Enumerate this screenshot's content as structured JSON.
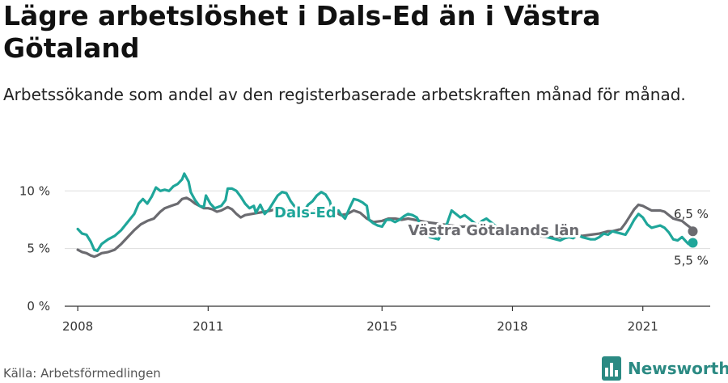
{
  "title": "Lägre arbetslöshet i Dals-Ed än i Västra Götaland",
  "subtitle": "Arbetssökande som andel av den registerbaserade arbetskraften månad för månad.",
  "source": "Källa: Arbetsförmedlingen",
  "brand": {
    "name": "Newsworthy",
    "logo_icon": "bar-chart-logo-icon"
  },
  "colors": {
    "dals_ed": "#1fa69a",
    "vastra_gotaland": "#6b6b70",
    "grid": "#dddddd",
    "axis": "#333333",
    "brand": "#2b8a83"
  },
  "chart_data": {
    "type": "line",
    "xlabel": "",
    "ylabel": "",
    "x_range": [
      2008.0,
      2022.0
    ],
    "ylim": [
      0,
      11
    ],
    "y_ticks": [
      0,
      5,
      10
    ],
    "y_tick_labels": [
      "0 %",
      "5 %",
      "10 %"
    ],
    "x_ticks": [
      2008,
      2011,
      2015,
      2018,
      2021
    ],
    "x_tick_labels": [
      "2008",
      "2011",
      "2015",
      "2018",
      "2021"
    ],
    "grid": true,
    "series": [
      {
        "name": "Dals-Ed",
        "label": "Dals-Ed",
        "color": "#1fa69a",
        "points": [
          [
            2008.0,
            6.7
          ],
          [
            2008.1,
            6.3
          ],
          [
            2008.2,
            6.2
          ],
          [
            2008.3,
            5.6
          ],
          [
            2008.38,
            4.9
          ],
          [
            2008.45,
            4.8
          ],
          [
            2008.55,
            5.4
          ],
          [
            2008.7,
            5.8
          ],
          [
            2008.85,
            6.1
          ],
          [
            2009.0,
            6.6
          ],
          [
            2009.15,
            7.3
          ],
          [
            2009.3,
            8.0
          ],
          [
            2009.4,
            8.9
          ],
          [
            2009.5,
            9.3
          ],
          [
            2009.6,
            8.9
          ],
          [
            2009.7,
            9.5
          ],
          [
            2009.8,
            10.3
          ],
          [
            2009.9,
            10.0
          ],
          [
            2010.0,
            10.1
          ],
          [
            2010.1,
            10.0
          ],
          [
            2010.2,
            10.4
          ],
          [
            2010.3,
            10.6
          ],
          [
            2010.4,
            11.0
          ],
          [
            2010.45,
            11.5
          ],
          [
            2010.55,
            10.8
          ],
          [
            2010.6,
            9.9
          ],
          [
            2010.7,
            9.2
          ],
          [
            2010.8,
            8.7
          ],
          [
            2010.9,
            8.6
          ],
          [
            2010.95,
            9.6
          ],
          [
            2011.05,
            8.9
          ],
          [
            2011.15,
            8.5
          ],
          [
            2011.3,
            8.7
          ],
          [
            2011.4,
            9.2
          ],
          [
            2011.45,
            10.2
          ],
          [
            2011.55,
            10.2
          ],
          [
            2011.65,
            10.0
          ],
          [
            2011.75,
            9.5
          ],
          [
            2011.85,
            8.9
          ],
          [
            2011.95,
            8.5
          ],
          [
            2012.05,
            8.7
          ],
          [
            2012.1,
            8.1
          ],
          [
            2012.2,
            8.8
          ],
          [
            2012.3,
            8.0
          ],
          [
            2012.4,
            8.4
          ],
          [
            2012.5,
            9.0
          ],
          [
            2012.6,
            9.6
          ],
          [
            2012.7,
            9.9
          ],
          [
            2012.8,
            9.8
          ],
          [
            2012.9,
            9.1
          ],
          [
            2013.0,
            8.6
          ],
          [
            2013.1,
            8.3
          ],
          [
            2013.2,
            8.2
          ],
          [
            2013.3,
            8.8
          ],
          [
            2013.4,
            9.1
          ],
          [
            2013.5,
            9.6
          ],
          [
            2013.6,
            9.9
          ],
          [
            2013.7,
            9.7
          ],
          [
            2013.8,
            9.1
          ],
          [
            2013.85,
            8.3
          ],
          [
            2013.95,
            8.2
          ],
          [
            2014.0,
            8.3
          ],
          [
            2014.05,
            8.0
          ],
          [
            2014.15,
            7.6
          ],
          [
            2014.25,
            8.5
          ],
          [
            2014.35,
            9.3
          ],
          [
            2014.45,
            9.2
          ],
          [
            2014.55,
            9.0
          ],
          [
            2014.65,
            8.7
          ],
          [
            2014.7,
            7.5
          ],
          [
            2014.8,
            7.2
          ],
          [
            2014.9,
            7.0
          ],
          [
            2015.0,
            6.9
          ],
          [
            2015.1,
            7.5
          ],
          [
            2015.2,
            7.5
          ],
          [
            2015.3,
            7.3
          ],
          [
            2015.4,
            7.5
          ],
          [
            2015.5,
            7.8
          ],
          [
            2015.6,
            8.0
          ],
          [
            2015.7,
            7.9
          ],
          [
            2015.8,
            7.7
          ],
          [
            2015.9,
            7.0
          ],
          [
            2016.0,
            6.5
          ],
          [
            2016.1,
            6.0
          ],
          [
            2016.2,
            5.9
          ],
          [
            2016.3,
            5.8
          ],
          [
            2016.4,
            6.6
          ],
          [
            2016.5,
            7.2
          ],
          [
            2016.6,
            8.3
          ],
          [
            2016.7,
            8.0
          ],
          [
            2016.8,
            7.7
          ],
          [
            2016.9,
            7.9
          ],
          [
            2017.0,
            7.6
          ],
          [
            2017.1,
            7.3
          ],
          [
            2017.2,
            7.0
          ],
          [
            2017.3,
            7.4
          ],
          [
            2017.4,
            7.6
          ],
          [
            2017.5,
            7.3
          ],
          [
            2017.6,
            7.0
          ],
          [
            2017.7,
            6.8
          ],
          [
            2017.8,
            6.7
          ],
          [
            2017.9,
            6.6
          ],
          [
            2018.0,
            6.5
          ],
          [
            2018.1,
            6.4
          ],
          [
            2018.2,
            6.3
          ],
          [
            2018.3,
            6.3
          ],
          [
            2018.4,
            6.3
          ],
          [
            2018.5,
            6.2
          ],
          [
            2018.6,
            6.2
          ],
          [
            2018.7,
            6.1
          ],
          [
            2018.8,
            6.0
          ],
          [
            2018.9,
            5.9
          ],
          [
            2019.0,
            5.8
          ],
          [
            2019.1,
            5.7
          ],
          [
            2019.2,
            5.9
          ],
          [
            2019.3,
            6.0
          ],
          [
            2019.4,
            5.9
          ],
          [
            2019.5,
            6.2
          ],
          [
            2019.6,
            6.0
          ],
          [
            2019.7,
            5.9
          ],
          [
            2019.8,
            5.8
          ],
          [
            2019.9,
            5.8
          ],
          [
            2020.0,
            6.0
          ],
          [
            2020.1,
            6.3
          ],
          [
            2020.2,
            6.2
          ],
          [
            2020.3,
            6.5
          ],
          [
            2020.4,
            6.4
          ],
          [
            2020.5,
            6.3
          ],
          [
            2020.6,
            6.2
          ],
          [
            2020.7,
            6.8
          ],
          [
            2020.8,
            7.5
          ],
          [
            2020.9,
            8.0
          ],
          [
            2021.0,
            7.7
          ],
          [
            2021.1,
            7.1
          ],
          [
            2021.2,
            6.8
          ],
          [
            2021.3,
            6.9
          ],
          [
            2021.4,
            7.0
          ],
          [
            2021.5,
            6.8
          ],
          [
            2021.6,
            6.4
          ],
          [
            2021.7,
            5.8
          ],
          [
            2021.8,
            5.7
          ],
          [
            2021.9,
            6.0
          ],
          [
            2022.0,
            5.6
          ],
          [
            2022.05,
            5.4
          ],
          [
            2022.15,
            5.5
          ]
        ],
        "end_label": "5,5 %"
      },
      {
        "name": "Västra Götalands län",
        "label": "Västra Götalands län",
        "color": "#6b6b70",
        "points": [
          [
            2008.0,
            4.9
          ],
          [
            2008.1,
            4.7
          ],
          [
            2008.2,
            4.6
          ],
          [
            2008.3,
            4.4
          ],
          [
            2008.38,
            4.3
          ],
          [
            2008.45,
            4.4
          ],
          [
            2008.55,
            4.6
          ],
          [
            2008.7,
            4.7
          ],
          [
            2008.85,
            4.9
          ],
          [
            2009.0,
            5.4
          ],
          [
            2009.15,
            6.0
          ],
          [
            2009.3,
            6.6
          ],
          [
            2009.45,
            7.1
          ],
          [
            2009.6,
            7.4
          ],
          [
            2009.75,
            7.6
          ],
          [
            2009.9,
            8.2
          ],
          [
            2010.0,
            8.5
          ],
          [
            2010.15,
            8.7
          ],
          [
            2010.3,
            8.9
          ],
          [
            2010.4,
            9.3
          ],
          [
            2010.5,
            9.4
          ],
          [
            2010.6,
            9.2
          ],
          [
            2010.7,
            8.9
          ],
          [
            2010.8,
            8.7
          ],
          [
            2010.9,
            8.5
          ],
          [
            2011.0,
            8.5
          ],
          [
            2011.1,
            8.4
          ],
          [
            2011.2,
            8.2
          ],
          [
            2011.3,
            8.3
          ],
          [
            2011.45,
            8.6
          ],
          [
            2011.55,
            8.4
          ],
          [
            2011.65,
            8.0
          ],
          [
            2011.75,
            7.7
          ],
          [
            2011.85,
            7.9
          ],
          [
            2012.0,
            8.0
          ],
          [
            2012.15,
            8.1
          ],
          [
            2012.3,
            8.2
          ],
          [
            2012.45,
            8.3
          ],
          [
            2012.6,
            8.5
          ],
          [
            2012.75,
            8.5
          ],
          [
            2012.9,
            8.4
          ],
          [
            2013.0,
            8.3
          ],
          [
            2013.15,
            8.2
          ],
          [
            2013.3,
            8.1
          ],
          [
            2013.45,
            8.3
          ],
          [
            2013.6,
            8.5
          ],
          [
            2013.75,
            8.4
          ],
          [
            2013.9,
            8.2
          ],
          [
            2014.05,
            7.9
          ],
          [
            2014.2,
            8.0
          ],
          [
            2014.35,
            8.3
          ],
          [
            2014.5,
            8.1
          ],
          [
            2014.65,
            7.6
          ],
          [
            2014.8,
            7.3
          ],
          [
            2015.0,
            7.4
          ],
          [
            2015.15,
            7.6
          ],
          [
            2015.3,
            7.6
          ],
          [
            2015.45,
            7.5
          ],
          [
            2015.6,
            7.6
          ],
          [
            2015.75,
            7.5
          ],
          [
            2016.0,
            7.3
          ],
          [
            2016.2,
            7.2
          ],
          [
            2016.4,
            7.1
          ],
          [
            2016.6,
            7.0
          ],
          [
            2016.8,
            6.9
          ],
          [
            2017.0,
            6.9
          ],
          [
            2017.2,
            6.8
          ],
          [
            2017.4,
            6.7
          ],
          [
            2017.6,
            6.6
          ],
          [
            2017.8,
            6.5
          ],
          [
            2018.0,
            6.4
          ],
          [
            2018.2,
            6.3
          ],
          [
            2018.4,
            6.2
          ],
          [
            2018.6,
            6.1
          ],
          [
            2018.8,
            6.0
          ],
          [
            2019.0,
            6.0
          ],
          [
            2019.2,
            6.0
          ],
          [
            2019.4,
            6.1
          ],
          [
            2019.6,
            6.1
          ],
          [
            2019.8,
            6.2
          ],
          [
            2020.0,
            6.3
          ],
          [
            2020.1,
            6.4
          ],
          [
            2020.2,
            6.5
          ],
          [
            2020.3,
            6.5
          ],
          [
            2020.4,
            6.6
          ],
          [
            2020.5,
            6.7
          ],
          [
            2020.6,
            7.2
          ],
          [
            2020.7,
            7.8
          ],
          [
            2020.8,
            8.4
          ],
          [
            2020.9,
            8.8
          ],
          [
            2021.0,
            8.7
          ],
          [
            2021.1,
            8.5
          ],
          [
            2021.2,
            8.3
          ],
          [
            2021.3,
            8.3
          ],
          [
            2021.4,
            8.3
          ],
          [
            2021.5,
            8.2
          ],
          [
            2021.6,
            7.9
          ],
          [
            2021.7,
            7.6
          ],
          [
            2021.8,
            7.5
          ],
          [
            2021.9,
            7.4
          ],
          [
            2022.0,
            7.1
          ],
          [
            2022.1,
            6.8
          ],
          [
            2022.15,
            6.5
          ]
        ],
        "end_label": "6,5 %"
      }
    ]
  }
}
